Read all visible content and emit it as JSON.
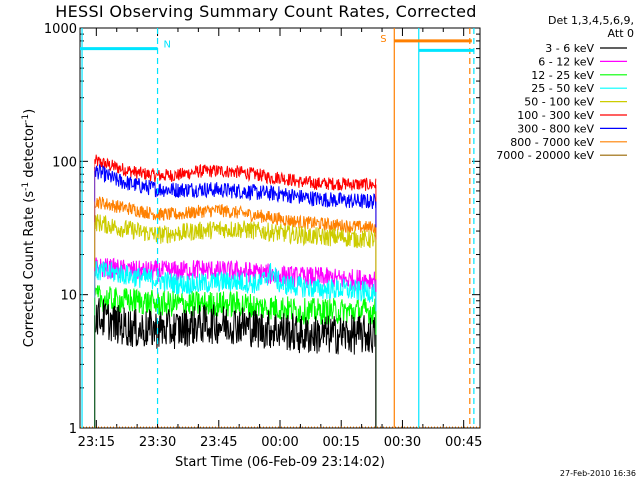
{
  "chart_data": {
    "type": "line",
    "title": "HESSI Observing Summary Count Rates, Corrected",
    "xlabel": "Start Time (06-Feb-09 23:14:02)",
    "ylabel": "Corrected Count Rate (s⁻¹ detector⁻¹)",
    "ylabel_parts": {
      "main": "Corrected Count Rate (s",
      "sup1": "-1",
      "mid": " detector",
      "sup2": "-1",
      "end": ")"
    },
    "yscale": "log",
    "ylim": [
      1,
      1000
    ],
    "y_ticks": [
      {
        "value": 1,
        "label": "1"
      },
      {
        "value": 10,
        "label": "10"
      },
      {
        "value": 100,
        "label": "100"
      },
      {
        "value": 1000,
        "label": "1000"
      }
    ],
    "xlim_minutes_after_2300": [
      11,
      109
    ],
    "x_ticks": [
      {
        "label": "23:15",
        "minutes_after_2300": 15
      },
      {
        "label": "23:30",
        "minutes_after_2300": 30
      },
      {
        "label": "23:45",
        "minutes_after_2300": 45
      },
      {
        "label": "00:00",
        "minutes_after_2300": 60
      },
      {
        "label": "00:15",
        "minutes_after_2300": 75
      },
      {
        "label": "00:30",
        "minutes_after_2300": 90
      },
      {
        "label": "00:45",
        "minutes_after_2300": 105
      }
    ],
    "data_end_minutes_after_2300": 83.5,
    "legend": {
      "header_line1": "Det 1,3,4,5,6,9,",
      "header_line2": "Att 0",
      "position": "right",
      "entries": [
        {
          "label": "3 - 6 keV",
          "color": "#000000"
        },
        {
          "label": "6 - 12 keV",
          "color": "#ff00ff"
        },
        {
          "label": "12 - 25 keV",
          "color": "#00ff00"
        },
        {
          "label": "25 - 50 keV",
          "color": "#00ffff"
        },
        {
          "label": "50 - 100 keV",
          "color": "#cccc00"
        },
        {
          "label": "100 - 300 keV",
          "color": "#ff0000"
        },
        {
          "label": "300 - 800 keV",
          "color": "#0000ff"
        },
        {
          "label": "800 - 7000 keV",
          "color": "#ff8000"
        },
        {
          "label": "7000 - 20000 keV",
          "color": "#996600"
        }
      ]
    },
    "series": [
      {
        "name": "100 - 300 keV",
        "color": "#ff0000",
        "x": [
          15,
          20,
          25,
          30,
          35,
          40,
          45,
          50,
          55,
          58,
          60,
          65,
          70,
          75,
          80,
          83.5
        ],
        "y": [
          100,
          90,
          82,
          78,
          79,
          84,
          85,
          83,
          79,
          75,
          76,
          70,
          68,
          68,
          67,
          67
        ],
        "noise": 0.05
      },
      {
        "name": "300 - 800 keV",
        "color": "#0000ff",
        "x": [
          15,
          20,
          25,
          30,
          35,
          40,
          45,
          50,
          55,
          60,
          65,
          70,
          75,
          80,
          83.5
        ],
        "y": [
          85,
          72,
          66,
          62,
          61,
          62,
          61,
          60,
          58,
          57,
          54,
          52,
          51,
          50,
          50
        ],
        "noise": 0.06
      },
      {
        "name": "800 - 7000 keV",
        "color": "#ff8000",
        "x": [
          15,
          20,
          25,
          30,
          35,
          40,
          45,
          50,
          55,
          60,
          65,
          70,
          75,
          80,
          83.5
        ],
        "y": [
          50,
          46,
          43,
          40,
          40,
          42,
          43,
          41,
          39,
          37,
          35,
          34,
          33,
          32,
          32
        ],
        "noise": 0.05
      },
      {
        "name": "50 - 100 keV",
        "color": "#cccc00",
        "x": [
          15,
          20,
          25,
          30,
          35,
          40,
          45,
          50,
          55,
          60,
          65,
          70,
          75,
          80,
          83.5
        ],
        "y": [
          35,
          32,
          30,
          28,
          29,
          30,
          31,
          31,
          30,
          29,
          28,
          27,
          27,
          26,
          26
        ],
        "noise": 0.07
      },
      {
        "name": "6 - 12 keV",
        "color": "#ff00ff",
        "x": [
          15,
          20,
          25,
          30,
          35,
          40,
          45,
          50,
          55,
          60,
          65,
          70,
          75,
          80,
          83.5
        ],
        "y": [
          16,
          15.5,
          15,
          15,
          15,
          15.5,
          15,
          15,
          14.5,
          14,
          13.5,
          13.5,
          13,
          13,
          13
        ],
        "noise": 0.08
      },
      {
        "name": "25 - 50 keV",
        "color": "#00ffff",
        "x": [
          15,
          20,
          25,
          30,
          35,
          40,
          45,
          50,
          55,
          58,
          60,
          65,
          70,
          75,
          80,
          83.5
        ],
        "y": [
          15,
          14.5,
          13.5,
          13,
          12,
          12,
          12.5,
          12.5,
          12,
          15,
          12,
          11.5,
          11,
          11,
          10.5,
          10.5
        ],
        "noise": 0.08
      },
      {
        "name": "12 - 25 keV",
        "color": "#00ff00",
        "x": [
          15,
          20,
          25,
          30,
          35,
          40,
          45,
          50,
          55,
          60,
          65,
          70,
          75,
          80,
          83.5
        ],
        "y": [
          9.5,
          9,
          9,
          8.5,
          8.5,
          8.5,
          8.5,
          8.5,
          8,
          8,
          7.5,
          7.5,
          7.5,
          7.5,
          7.5
        ],
        "noise": 0.1
      },
      {
        "name": "3 - 6 keV",
        "color": "#000000",
        "x": [
          15,
          20,
          25,
          30,
          35,
          40,
          45,
          50,
          55,
          60,
          65,
          70,
          75,
          80,
          83.5
        ],
        "y": [
          7,
          6,
          5.5,
          5.5,
          5.5,
          6,
          6,
          6,
          5.5,
          5.5,
          5,
          5,
          5,
          5,
          5
        ],
        "noise": 0.15
      }
    ],
    "annotations": {
      "cyan_segments": [
        {
          "x_start": 11,
          "x_end": 30,
          "y": 700
        },
        {
          "x_start": 94,
          "x_end": 107.5,
          "y": 680
        }
      ],
      "orange_segment": {
        "x_start": 88,
        "x_end": 107,
        "y": 800
      },
      "n_marker": {
        "label": "N",
        "x": 30
      },
      "s_marker": {
        "label": "S",
        "x": 88
      },
      "cyan_solid_verticals": [
        11.5,
        94
      ],
      "cyan_dashed_verticals": [
        30,
        107.5
      ],
      "orange_solid_verticals": [
        88
      ],
      "orange_dashed_verticals": [
        106.5
      ],
      "orange_dotted_baseline": {
        "x_start": 11,
        "x_end": 109,
        "y": 1
      }
    }
  },
  "footer_timestamp": "27-Feb-2010 16:36"
}
